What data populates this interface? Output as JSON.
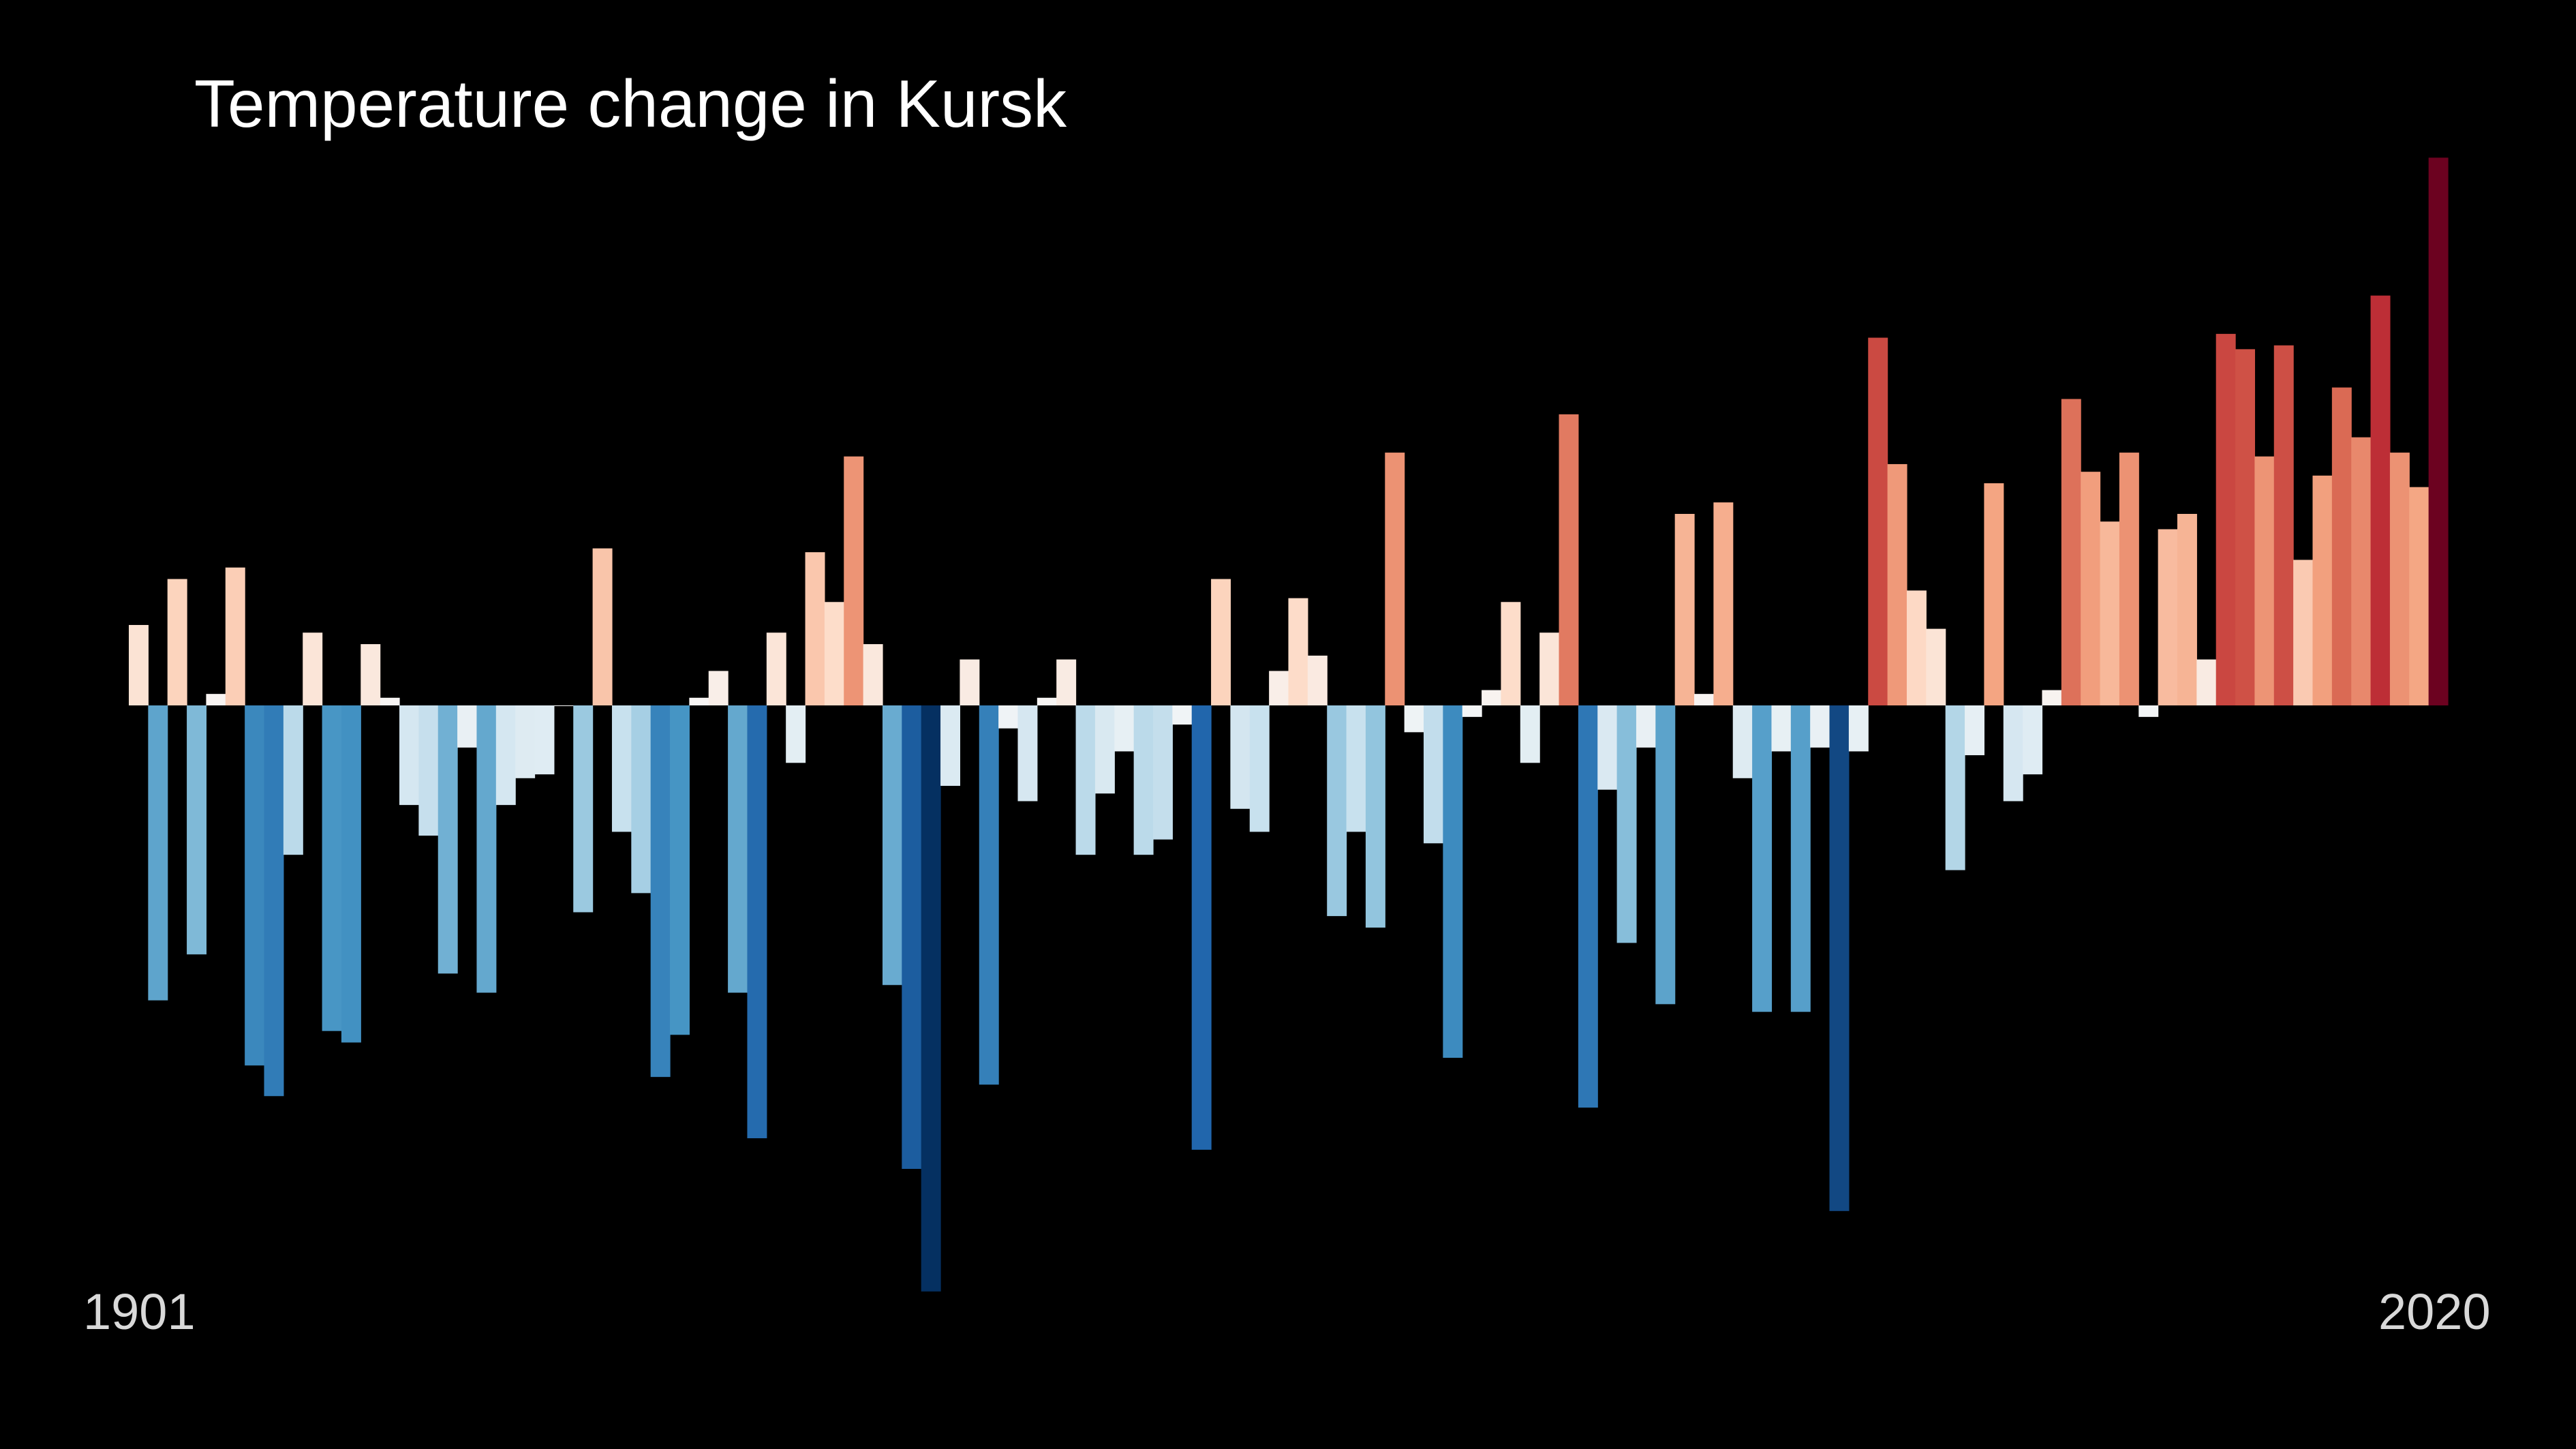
{
  "title": "Temperature change in Kursk",
  "chart_data": {
    "type": "bar",
    "title": "Temperature change in Kursk",
    "x_start": 1901,
    "x_end": 2020,
    "xtick_labels": [
      "1901",
      "2020"
    ],
    "ylim": [
      -1.53,
      1.43
    ],
    "grid": false,
    "legend": "none",
    "background_color": "#000000",
    "colormap": "RdBu_r (blue = cooler, red = warmer)",
    "values": [
      0.21,
      -0.77,
      0.33,
      -0.65,
      0.03,
      0.36,
      -0.94,
      -1.02,
      -0.39,
      0.19,
      -0.85,
      -0.88,
      0.16,
      0.02,
      -0.26,
      -0.34,
      -0.7,
      -0.11,
      -0.75,
      -0.26,
      -0.19,
      -0.18,
      0.0,
      -0.54,
      0.41,
      -0.33,
      -0.49,
      -0.97,
      -0.86,
      0.02,
      0.09,
      -0.75,
      -1.13,
      0.19,
      -0.15,
      0.4,
      0.27,
      0.65,
      0.16,
      -0.73,
      -1.21,
      -1.53,
      -0.21,
      0.12,
      -0.99,
      -0.06,
      -0.25,
      0.02,
      0.12,
      -0.39,
      -0.23,
      -0.12,
      -0.39,
      -0.35,
      -0.05,
      -1.16,
      0.33,
      -0.27,
      -0.33,
      0.09,
      0.28,
      0.13,
      -0.55,
      -0.33,
      -0.58,
      0.66,
      -0.07,
      -0.36,
      -0.92,
      -0.03,
      0.04,
      0.27,
      -0.15,
      0.19,
      0.76,
      -1.05,
      -0.22,
      -0.62,
      -0.11,
      -0.78,
      0.5,
      0.03,
      0.53,
      -0.19,
      -0.8,
      -0.12,
      -0.8,
      -0.11,
      -1.32,
      -0.12,
      0.96,
      0.63,
      0.3,
      0.2,
      -0.43,
      -0.13,
      0.58,
      -0.25,
      -0.18,
      0.04,
      0.8,
      0.61,
      0.48,
      0.66,
      -0.03,
      0.46,
      0.5,
      0.12,
      0.97,
      0.93,
      0.65,
      0.94,
      0.38,
      0.6,
      0.83,
      0.7,
      1.07,
      0.66,
      0.57,
      1.43
    ]
  }
}
